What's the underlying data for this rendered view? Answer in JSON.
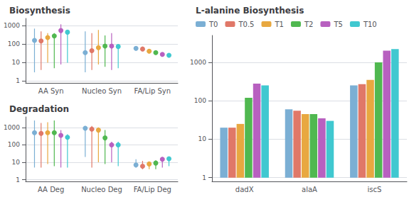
{
  "chart_data": [
    {
      "type": "lollipop",
      "title": "Biosynthesis",
      "categories": [
        "AA Syn",
        "Nucleo Syn",
        "FA/Lip Syn"
      ],
      "log": "y",
      "ylim": [
        0.8,
        2500
      ],
      "yticks": [
        1,
        10,
        100,
        1000
      ],
      "grid": true,
      "series": [
        {
          "color": "#7bafd4",
          "low": [
            3,
            3,
            null
          ],
          "high": [
            700,
            500,
            null
          ],
          "values": [
            160,
            35,
            60
          ]
        },
        {
          "color": "#e07868",
          "low": [
            4,
            4,
            null
          ],
          "high": [
            500,
            400,
            null
          ],
          "values": [
            150,
            45,
            55
          ]
        },
        {
          "color": "#e8a840",
          "low": [
            10,
            8,
            null
          ],
          "high": [
            400,
            600,
            null
          ],
          "values": [
            230,
            65,
            42
          ]
        },
        {
          "color": "#50b850",
          "low": [
            5,
            6,
            null
          ],
          "high": [
            400,
            300,
            null
          ],
          "values": [
            280,
            80,
            35
          ]
        },
        {
          "color": "#b860c0",
          "low": [
            8,
            4,
            null
          ],
          "high": [
            1200,
            400,
            null
          ],
          "values": [
            550,
            80,
            28
          ]
        },
        {
          "color": "#40c8d0",
          "low": [
            10,
            5,
            null
          ],
          "high": [
            600,
            80,
            null
          ],
          "values": [
            450,
            75,
            25
          ]
        }
      ]
    },
    {
      "type": "lollipop",
      "title": "Degradation",
      "categories": [
        "AA Deg",
        "Nucleo Deg",
        "FA/Lip Deg"
      ],
      "log": "y",
      "ylim": [
        0.8,
        4000
      ],
      "yticks": [
        1,
        10,
        100,
        1000
      ],
      "grid": true,
      "series": [
        {
          "color": "#7bafd4",
          "low": [
            5,
            20,
            5
          ],
          "high": [
            2500,
            1200,
            15
          ],
          "values": [
            500,
            900,
            7
          ]
        },
        {
          "color": "#e07868",
          "low": [
            5,
            5,
            4
          ],
          "high": [
            1800,
            1200,
            12
          ],
          "values": [
            450,
            800,
            6
          ]
        },
        {
          "color": "#e8a840",
          "low": [
            8,
            10,
            4
          ],
          "high": [
            2000,
            1000,
            11
          ],
          "values": [
            500,
            700,
            8
          ]
        },
        {
          "color": "#50b850",
          "low": [
            6,
            8,
            4
          ],
          "high": [
            2500,
            700,
            13
          ],
          "values": [
            500,
            250,
            9
          ]
        },
        {
          "color": "#b860c0",
          "low": [
            5,
            10,
            5
          ],
          "high": [
            700,
            150,
            20
          ],
          "values": [
            350,
            100,
            15
          ]
        },
        {
          "color": "#40c8d0",
          "low": [
            5,
            6,
            6
          ],
          "high": [
            400,
            150,
            20
          ],
          "values": [
            270,
            100,
            16
          ]
        }
      ]
    },
    {
      "type": "bar",
      "title": "L-alanine Biosynthesis",
      "categories": [
        "dadX",
        "alaA",
        "iscS"
      ],
      "log": "y",
      "ylim": [
        0.8,
        5000
      ],
      "yticks": [
        1,
        10,
        100,
        1000
      ],
      "grid": true,
      "legend": "top",
      "series": [
        {
          "name": "T0",
          "color": "#7bafd4",
          "values": [
            20,
            60,
            250
          ]
        },
        {
          "name": "T0.5",
          "color": "#e07868",
          "values": [
            20,
            55,
            270
          ]
        },
        {
          "name": "T1",
          "color": "#e8a840",
          "values": [
            25,
            45,
            350
          ]
        },
        {
          "name": "T2",
          "color": "#50b850",
          "values": [
            120,
            45,
            1000
          ]
        },
        {
          "name": "T5",
          "color": "#b860c0",
          "values": [
            280,
            35,
            2000
          ]
        },
        {
          "name": "T10",
          "color": "#40c8d0",
          "values": [
            250,
            30,
            2200
          ]
        }
      ]
    }
  ]
}
